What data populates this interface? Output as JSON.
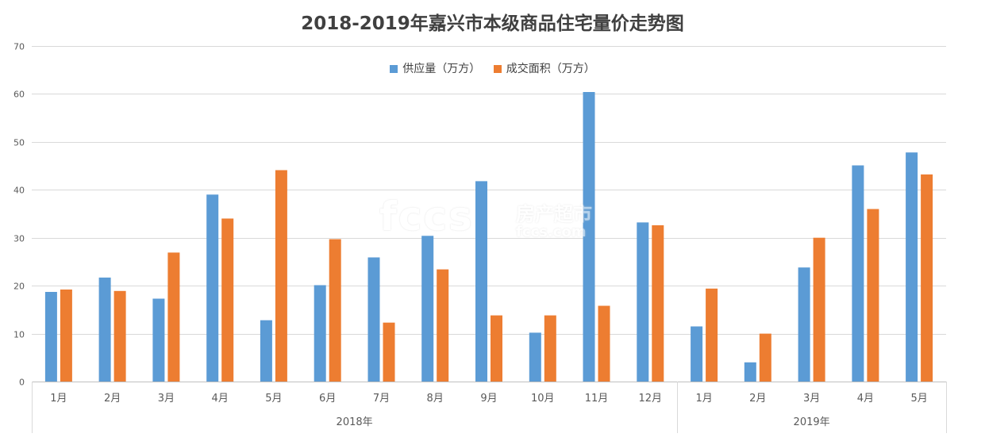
{
  "chart_data": {
    "type": "bar",
    "title": "2018-2019年嘉兴市本级商品住宅量价走势图",
    "categories": [
      "1月",
      "2月",
      "3月",
      "4月",
      "5月",
      "6月",
      "7月",
      "8月",
      "9月",
      "10月",
      "11月",
      "12月",
      "1月",
      "2月",
      "3月",
      "4月",
      "5月"
    ],
    "groups": [
      {
        "label": "2018年",
        "count": 12
      },
      {
        "label": "2019年",
        "count": 5
      }
    ],
    "series": [
      {
        "name": "供应量（万方）",
        "color": "#5B9BD5",
        "values": [
          18.7,
          21.7,
          17.3,
          39.0,
          12.8,
          20.1,
          25.9,
          30.4,
          41.8,
          10.2,
          60.4,
          33.2,
          11.5,
          4.0,
          23.8,
          45.1,
          47.8
        ]
      },
      {
        "name": "成交面积（万方）",
        "color": "#ED7D31",
        "values": [
          19.2,
          18.9,
          26.9,
          34.0,
          44.1,
          29.7,
          12.3,
          23.4,
          13.8,
          13.8,
          15.8,
          32.6,
          19.4,
          10.0,
          30.0,
          36.0,
          43.2
        ]
      }
    ],
    "ylim": [
      0,
      70
    ],
    "yticks": [
      0,
      10,
      20,
      30,
      40,
      50,
      60,
      70
    ],
    "grid": true,
    "legend": "top-center"
  },
  "watermark": {
    "logo": "fccs",
    "cn": "房产超市",
    "url": "fccs.com"
  }
}
